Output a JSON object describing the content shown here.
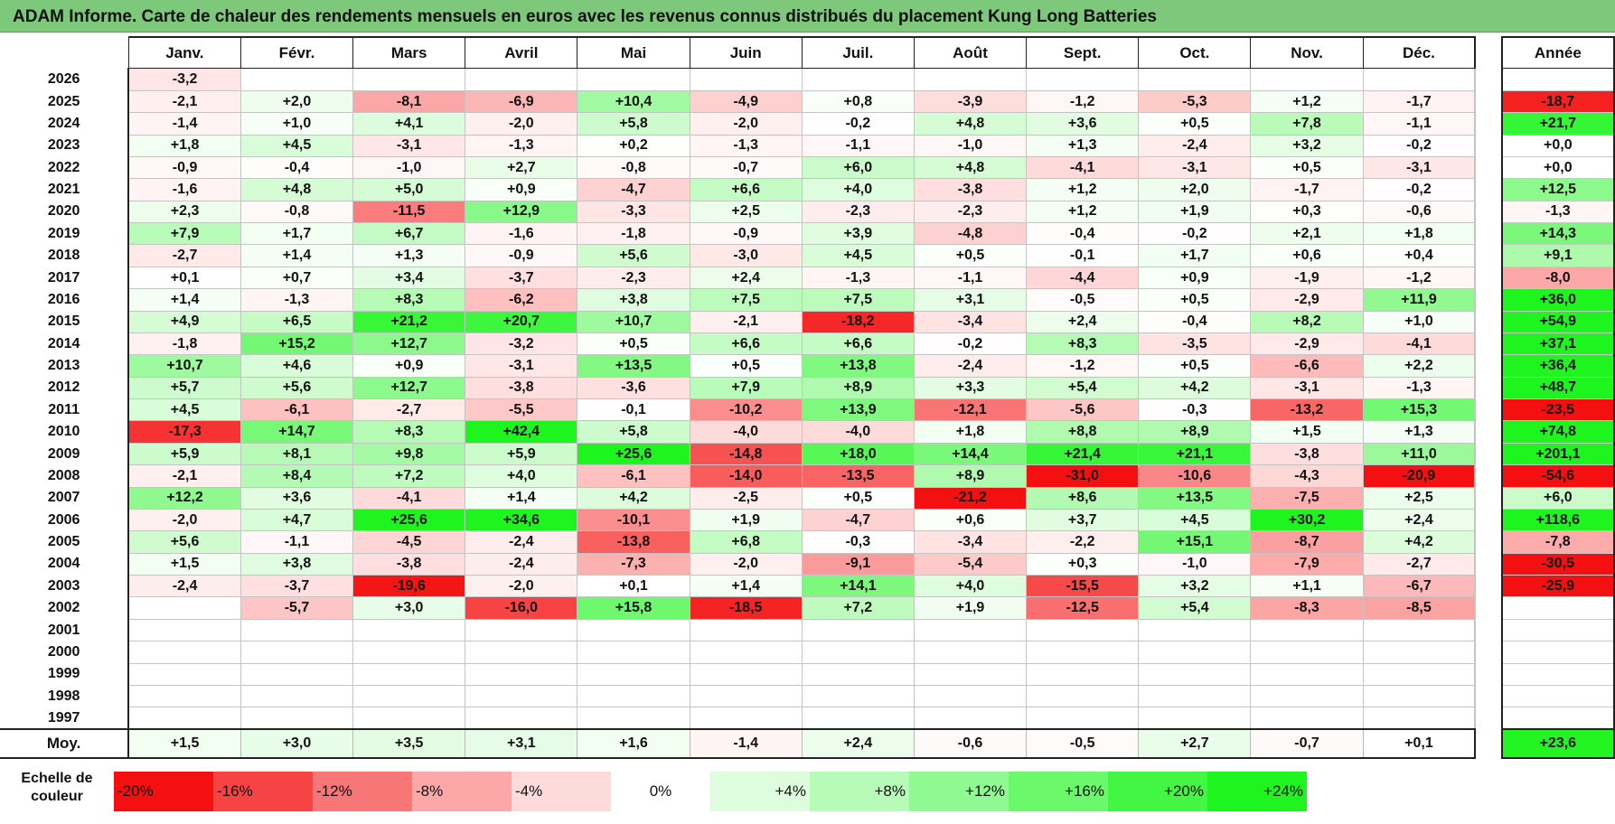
{
  "title": "ADAM Informe. Carte de chaleur des rendements mensuels en euros avec les revenus connus distribués du placement Kung Long Batteries",
  "chart_data": {
    "type": "heatmap",
    "months": [
      "Janv.",
      "Févr.",
      "Mars",
      "Avril",
      "Mai",
      "Juin",
      "Juil.",
      "Août",
      "Sept.",
      "Oct.",
      "Nov.",
      "Déc."
    ],
    "year_header": "Année",
    "rows": [
      {
        "year": "2026",
        "values": [
          "-3,2",
          "",
          "",
          "",
          "",
          "",
          "",
          "",
          "",
          "",
          "",
          ""
        ],
        "annual": ""
      },
      {
        "year": "2025",
        "values": [
          "-2,1",
          "+2,0",
          "-8,1",
          "-6,9",
          "+10,4",
          "-4,9",
          "+0,8",
          "-3,9",
          "-1,2",
          "-5,3",
          "+1,2",
          "-1,7"
        ],
        "annual": "-18,7"
      },
      {
        "year": "2024",
        "values": [
          "-1,4",
          "+1,0",
          "+4,1",
          "-2,0",
          "+5,8",
          "-2,0",
          "-0,2",
          "+4,8",
          "+3,6",
          "+0,5",
          "+7,8",
          "-1,1"
        ],
        "annual": "+21,7"
      },
      {
        "year": "2023",
        "values": [
          "+1,8",
          "+4,5",
          "-3,1",
          "-1,3",
          "+0,2",
          "-1,3",
          "-1,1",
          "-1,0",
          "+1,3",
          "-2,4",
          "+3,2",
          "-0,2"
        ],
        "annual": "+0,0"
      },
      {
        "year": "2022",
        "values": [
          "-0,9",
          "-0,4",
          "-1,0",
          "+2,7",
          "-0,8",
          "-0,7",
          "+6,0",
          "+4,8",
          "-4,1",
          "-3,1",
          "+0,5",
          "-3,1"
        ],
        "annual": "+0,0"
      },
      {
        "year": "2021",
        "values": [
          "-1,6",
          "+4,8",
          "+5,0",
          "+0,9",
          "-4,7",
          "+6,6",
          "+4,0",
          "-3,8",
          "+1,2",
          "+2,0",
          "-1,7",
          "-0,2"
        ],
        "annual": "+12,5"
      },
      {
        "year": "2020",
        "values": [
          "+2,3",
          "-0,8",
          "-11,5",
          "+12,9",
          "-3,3",
          "+2,5",
          "-2,3",
          "-2,3",
          "+1,2",
          "+1,9",
          "+0,3",
          "-0,6"
        ],
        "annual": "-1,3"
      },
      {
        "year": "2019",
        "values": [
          "+7,9",
          "+1,7",
          "+6,7",
          "-1,6",
          "-1,8",
          "-0,9",
          "+3,9",
          "-4,8",
          "-0,4",
          "-0,2",
          "+2,1",
          "+1,8"
        ],
        "annual": "+14,3"
      },
      {
        "year": "2018",
        "values": [
          "-2,7",
          "+1,4",
          "+1,3",
          "-0,9",
          "+5,6",
          "-3,0",
          "+4,5",
          "+0,5",
          "-0,1",
          "+1,7",
          "+0,6",
          "+0,4"
        ],
        "annual": "+9,1"
      },
      {
        "year": "2017",
        "values": [
          "+0,1",
          "+0,7",
          "+3,4",
          "-3,7",
          "-2,3",
          "+2,4",
          "-1,3",
          "-1,1",
          "-4,4",
          "+0,9",
          "-1,9",
          "-1,2"
        ],
        "annual": "-8,0"
      },
      {
        "year": "2016",
        "values": [
          "+1,4",
          "-1,3",
          "+8,3",
          "-6,2",
          "+3,8",
          "+7,5",
          "+7,5",
          "+3,1",
          "-0,5",
          "+0,5",
          "-2,9",
          "+11,9"
        ],
        "annual": "+36,0"
      },
      {
        "year": "2015",
        "values": [
          "+4,9",
          "+6,5",
          "+21,2",
          "+20,7",
          "+10,7",
          "-2,1",
          "-18,2",
          "-3,4",
          "+2,4",
          "-0,4",
          "+8,2",
          "+1,0"
        ],
        "annual": "+54,9"
      },
      {
        "year": "2014",
        "values": [
          "-1,8",
          "+15,2",
          "+12,7",
          "-3,2",
          "+0,5",
          "+6,6",
          "+6,6",
          "-0,2",
          "+8,3",
          "-3,5",
          "-2,9",
          "-4,1"
        ],
        "annual": "+37,1"
      },
      {
        "year": "2013",
        "values": [
          "+10,7",
          "+4,6",
          "+0,9",
          "-3,1",
          "+13,5",
          "+0,5",
          "+13,8",
          "-2,4",
          "-1,2",
          "+0,5",
          "-6,6",
          "+2,2"
        ],
        "annual": "+36,4"
      },
      {
        "year": "2012",
        "values": [
          "+5,7",
          "+5,6",
          "+12,7",
          "-3,8",
          "-3,6",
          "+7,9",
          "+8,9",
          "+3,3",
          "+5,4",
          "+4,2",
          "-3,1",
          "-1,3"
        ],
        "annual": "+48,7"
      },
      {
        "year": "2011",
        "values": [
          "+4,5",
          "-6,1",
          "-2,7",
          "-5,5",
          "-0,1",
          "-10,2",
          "+13,9",
          "-12,1",
          "-5,6",
          "-0,3",
          "-13,2",
          "+15,3"
        ],
        "annual": "-23,5"
      },
      {
        "year": "2010",
        "values": [
          "-17,3",
          "+14,7",
          "+8,3",
          "+42,4",
          "+5,8",
          "-4,0",
          "-4,0",
          "+1,8",
          "+8,8",
          "+8,9",
          "+1,5",
          "+1,3"
        ],
        "annual": "+74,8"
      },
      {
        "year": "2009",
        "values": [
          "+5,9",
          "+8,1",
          "+9,8",
          "+5,9",
          "+25,6",
          "-14,8",
          "+18,0",
          "+14,4",
          "+21,4",
          "+21,1",
          "-3,8",
          "+11,0"
        ],
        "annual": "+201,1"
      },
      {
        "year": "2008",
        "values": [
          "-2,1",
          "+8,4",
          "+7,2",
          "+4,0",
          "-6,1",
          "-14,0",
          "-13,5",
          "+8,9",
          "-31,0",
          "-10,6",
          "-4,3",
          "-20,9"
        ],
        "annual": "-54,6"
      },
      {
        "year": "2007",
        "values": [
          "+12,2",
          "+3,6",
          "-4,1",
          "+1,4",
          "+4,2",
          "-2,5",
          "+0,5",
          "-21,2",
          "+8,6",
          "+13,5",
          "-7,5",
          "+2,5"
        ],
        "annual": "+6,0"
      },
      {
        "year": "2006",
        "values": [
          "-2,0",
          "+4,7",
          "+25,6",
          "+34,6",
          "-10,1",
          "+1,9",
          "-4,7",
          "+0,6",
          "+3,7",
          "+4,5",
          "+30,2",
          "+2,4"
        ],
        "annual": "+118,6"
      },
      {
        "year": "2005",
        "values": [
          "+5,6",
          "-1,1",
          "-4,5",
          "-2,4",
          "-13,8",
          "+6,8",
          "-0,3",
          "-3,4",
          "-2,2",
          "+15,1",
          "-8,7",
          "+4,2"
        ],
        "annual": "-7,8"
      },
      {
        "year": "2004",
        "values": [
          "+1,5",
          "+3,8",
          "-3,8",
          "-2,4",
          "-7,3",
          "-2,0",
          "-9,1",
          "-5,4",
          "+0,3",
          "-1,0",
          "-7,9",
          "-2,7"
        ],
        "annual": "-30,5"
      },
      {
        "year": "2003",
        "values": [
          "-2,4",
          "-3,7",
          "-19,6",
          "-2,0",
          "+0,1",
          "+1,4",
          "+14,1",
          "+4,0",
          "-15,5",
          "+3,2",
          "+1,1",
          "-6,7"
        ],
        "annual": "-25,9"
      },
      {
        "year": "2002",
        "values": [
          "",
          "-5,7",
          "+3,0",
          "-16,0",
          "+15,8",
          "-18,5",
          "+7,2",
          "+1,9",
          "-12,5",
          "+5,4",
          "-8,3",
          "-8,5"
        ],
        "annual": ""
      },
      {
        "year": "2001",
        "values": [
          "",
          "",
          "",
          "",
          "",
          "",
          "",
          "",
          "",
          "",
          "",
          ""
        ],
        "annual": ""
      },
      {
        "year": "2000",
        "values": [
          "",
          "",
          "",
          "",
          "",
          "",
          "",
          "",
          "",
          "",
          "",
          ""
        ],
        "annual": ""
      },
      {
        "year": "1999",
        "values": [
          "",
          "",
          "",
          "",
          "",
          "",
          "",
          "",
          "",
          "",
          "",
          ""
        ],
        "annual": ""
      },
      {
        "year": "1998",
        "values": [
          "",
          "",
          "",
          "",
          "",
          "",
          "",
          "",
          "",
          "",
          "",
          ""
        ],
        "annual": ""
      },
      {
        "year": "1997",
        "values": [
          "",
          "",
          "",
          "",
          "",
          "",
          "",
          "",
          "",
          "",
          "",
          ""
        ],
        "annual": ""
      }
    ],
    "average": {
      "label": "Moy.",
      "values": [
        "+1,5",
        "+3,0",
        "+3,5",
        "+3,1",
        "+1,6",
        "-1,4",
        "+2,4",
        "-0,6",
        "-0,5",
        "+2,7",
        "-0,7",
        "+0,1"
      ],
      "annual": "+23,6"
    },
    "color_scale": {
      "label": "Echelle de couleur",
      "steps": [
        {
          "label": "-20%",
          "value": -20
        },
        {
          "label": "-16%",
          "value": -16
        },
        {
          "label": "-12%",
          "value": -12
        },
        {
          "label": "-8%",
          "value": -8
        },
        {
          "label": "-4%",
          "value": -4
        },
        {
          "label": "0%",
          "value": 0
        },
        {
          "label": "+4%",
          "value": 4
        },
        {
          "label": "+8%",
          "value": 8
        },
        {
          "label": "+12%",
          "value": 12
        },
        {
          "label": "+16%",
          "value": 16
        },
        {
          "label": "+20%",
          "value": 20
        },
        {
          "label": "+24%",
          "value": 24
        }
      ]
    }
  }
}
